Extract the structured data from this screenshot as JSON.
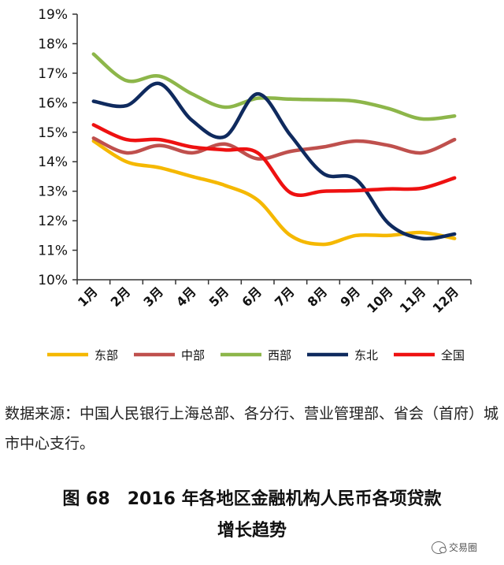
{
  "chart_data": {
    "type": "line",
    "categories": [
      "1月",
      "2月",
      "3月",
      "4月",
      "5月",
      "6月",
      "7月",
      "8月",
      "9月",
      "10月",
      "11月",
      "12月"
    ],
    "ylim": [
      10,
      19
    ],
    "y_ticks": [
      "10%",
      "11%",
      "12%",
      "13%",
      "14%",
      "15%",
      "16%",
      "17%",
      "18%",
      "19%"
    ],
    "series": [
      {
        "name": "东部",
        "color": "#F5B800",
        "values": [
          14.7,
          14.0,
          13.8,
          13.5,
          13.2,
          12.7,
          11.5,
          11.2,
          11.5,
          11.5,
          11.6,
          11.4
        ]
      },
      {
        "name": "中部",
        "color": "#BF504D",
        "values": [
          14.8,
          14.3,
          14.55,
          14.3,
          14.6,
          14.1,
          14.35,
          14.5,
          14.7,
          14.55,
          14.3,
          14.75
        ]
      },
      {
        "name": "西部",
        "color": "#8DB64A",
        "values": [
          17.65,
          16.75,
          16.9,
          16.3,
          15.85,
          16.15,
          16.12,
          16.1,
          16.05,
          15.8,
          15.45,
          15.55
        ]
      },
      {
        "name": "东北",
        "color": "#0F2A5E",
        "values": [
          16.05,
          15.9,
          16.65,
          15.4,
          14.85,
          16.3,
          14.9,
          13.6,
          13.4,
          11.9,
          11.4,
          11.55
        ]
      },
      {
        "name": "全国",
        "color": "#EE1111",
        "values": [
          15.25,
          14.75,
          14.75,
          14.5,
          14.4,
          14.3,
          12.95,
          13.0,
          13.02,
          13.08,
          13.1,
          13.45
        ]
      }
    ],
    "legend_position": "bottom",
    "grid": false
  },
  "source_text": "数据来源：中国人民银行上海总部、各分行、营业管理部、省会（首府）城市中心支行。",
  "caption": {
    "figure_number": "图 68",
    "title_line1": "2016 年各地区金融机构人民币各项贷款",
    "title_line2": "增长趋势"
  },
  "watermark": "交易圈"
}
